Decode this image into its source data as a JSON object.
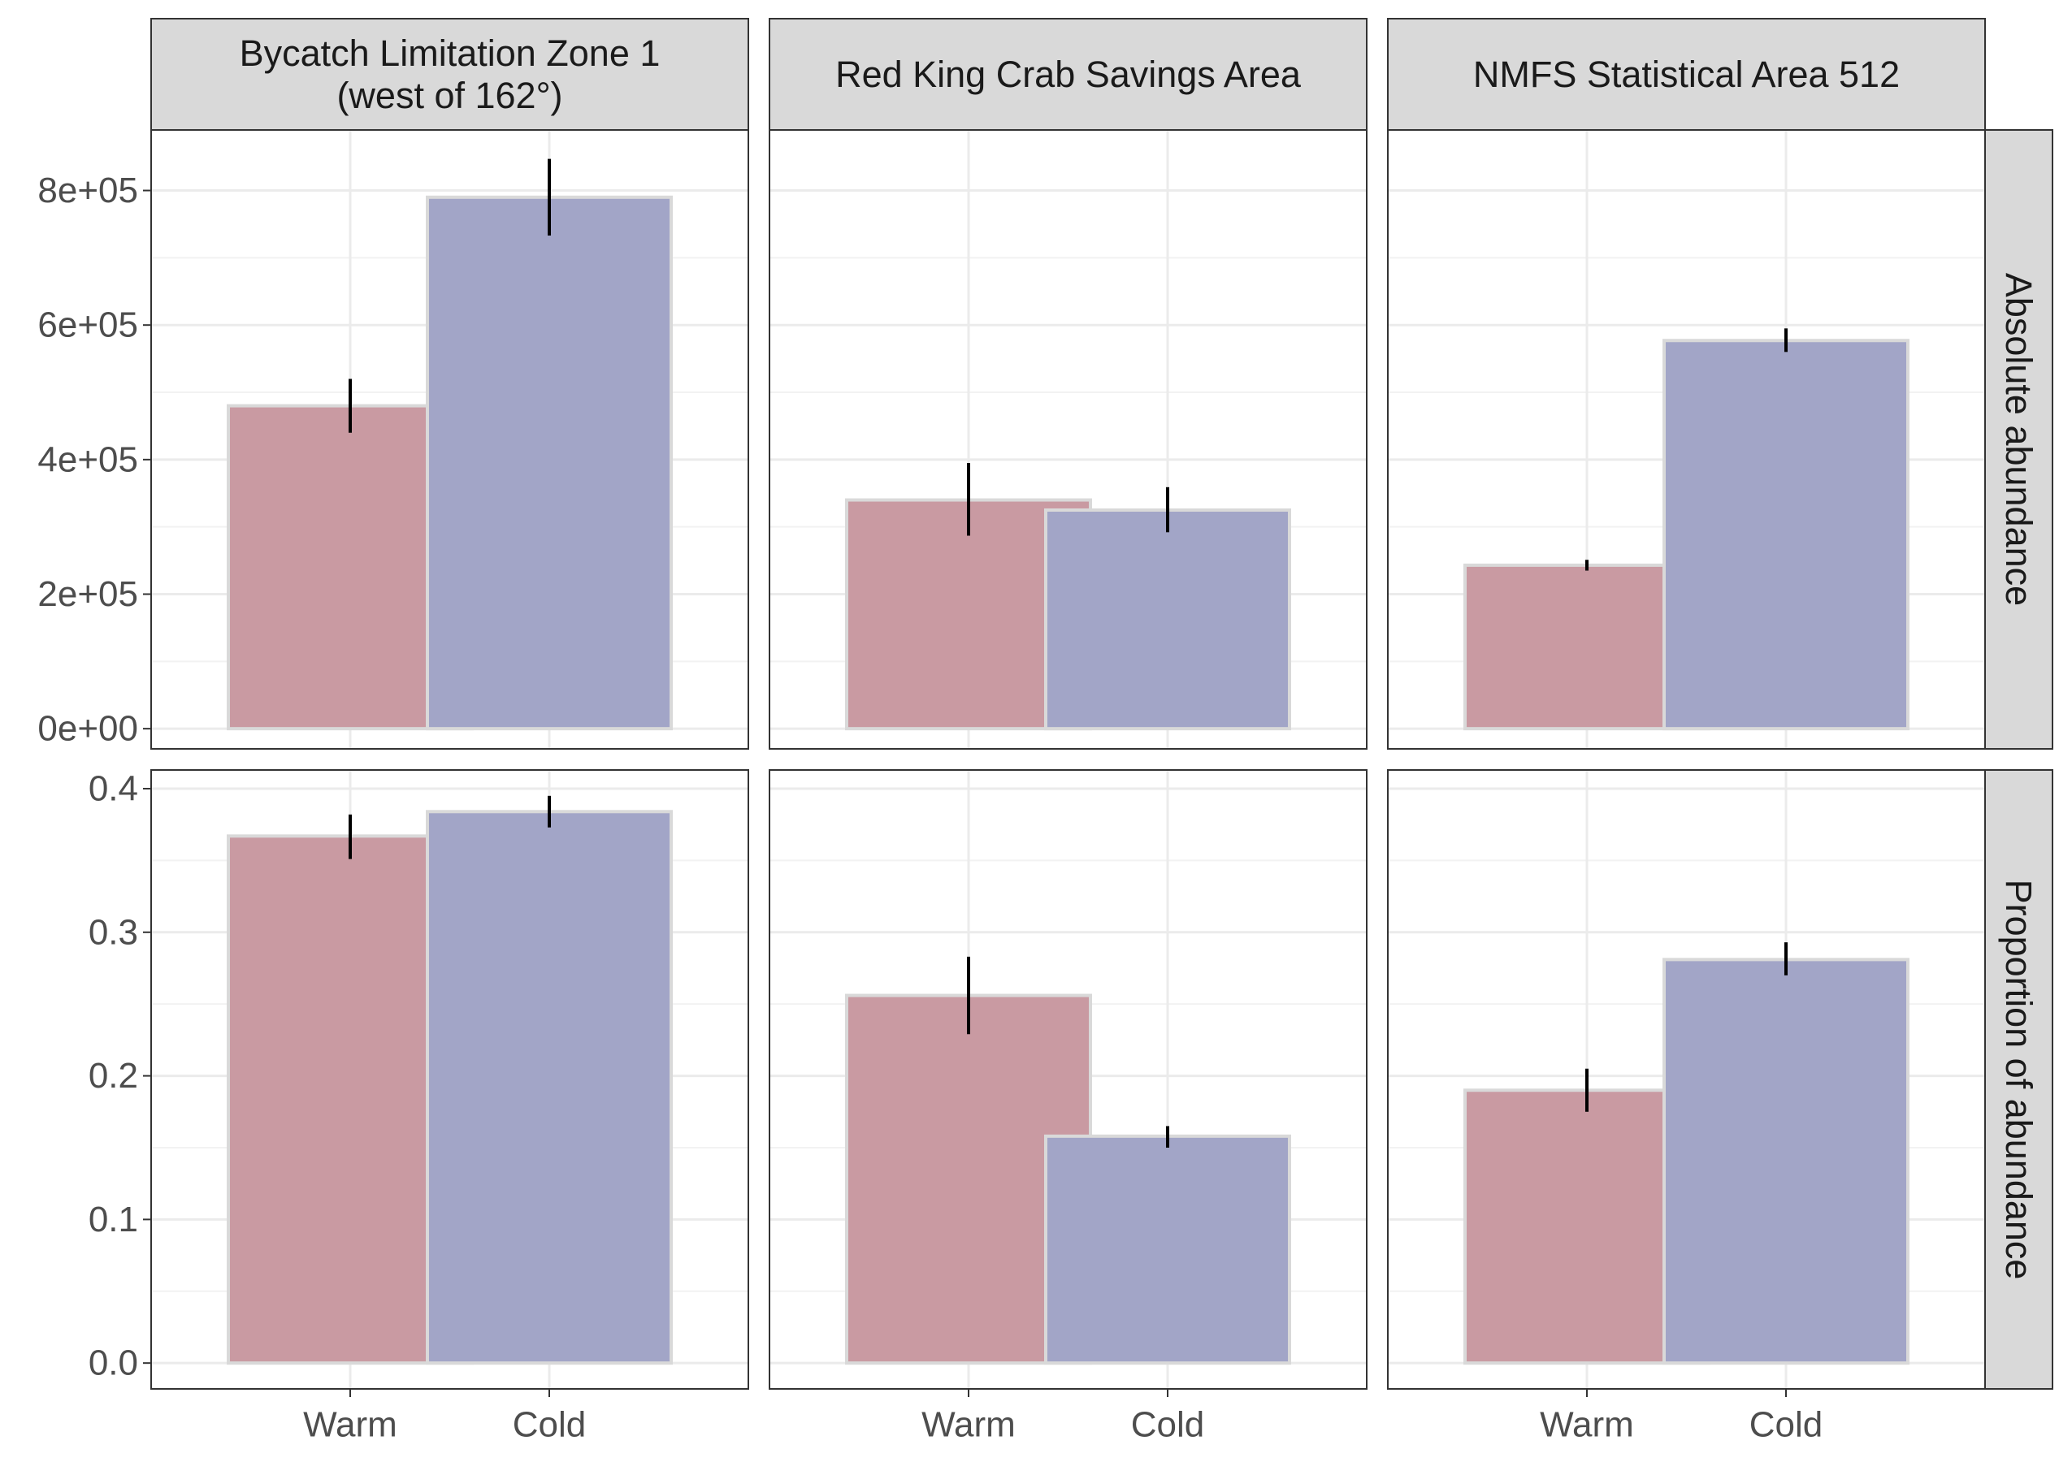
{
  "chart_data": {
    "type": "bar",
    "layout": "facet-grid",
    "categories": [
      "Warm",
      "Cold"
    ],
    "category_colors": [
      "#c99aa2",
      "#a2a5c7"
    ],
    "bar_outline_color": "#d9d9d9",
    "error_bar_color": "#000000",
    "strip_fill": "#d9d9d9",
    "grid": true,
    "legend": "none",
    "columns": [
      "Bycatch Limitation Zone 1\n(west of 162°)",
      "Red King Crab Savings Area",
      "NMFS Statistical Area 512"
    ],
    "rows": [
      {
        "label": "Absolute abundance",
        "ylim": [
          -30000,
          890000
        ],
        "yticks": [
          0,
          200000,
          400000,
          600000,
          800000
        ],
        "ytick_labels": [
          "0e+00",
          "2e+05",
          "4e+05",
          "6e+05",
          "8e+05"
        ],
        "panels": [
          {
            "values": [
              480000,
              790000
            ],
            "errors": [
              [
                440000,
                520000
              ],
              [
                733000,
                847000
              ]
            ]
          },
          {
            "values": [
              340000,
              325000
            ],
            "errors": [
              [
                287000,
                395000
              ],
              [
                292000,
                359000
              ]
            ]
          },
          {
            "values": [
              243000,
              577000
            ],
            "errors": [
              [
                235000,
                251000
              ],
              [
                560000,
                595000
              ]
            ]
          }
        ]
      },
      {
        "label": "Proportion of abundance",
        "ylim": [
          -0.018,
          0.413
        ],
        "yticks": [
          0.0,
          0.1,
          0.2,
          0.3,
          0.4
        ],
        "ytick_labels": [
          "0.0",
          "0.1",
          "0.2",
          "0.3",
          "0.4"
        ],
        "panels": [
          {
            "values": [
              0.367,
              0.384
            ],
            "errors": [
              [
                0.351,
                0.382
              ],
              [
                0.373,
                0.395
              ]
            ]
          },
          {
            "values": [
              0.256,
              0.158
            ],
            "errors": [
              [
                0.229,
                0.283
              ],
              [
                0.15,
                0.165
              ]
            ]
          },
          {
            "values": [
              0.19,
              0.281
            ],
            "errors": [
              [
                0.175,
                0.205
              ],
              [
                0.27,
                0.293
              ]
            ]
          }
        ]
      }
    ]
  }
}
